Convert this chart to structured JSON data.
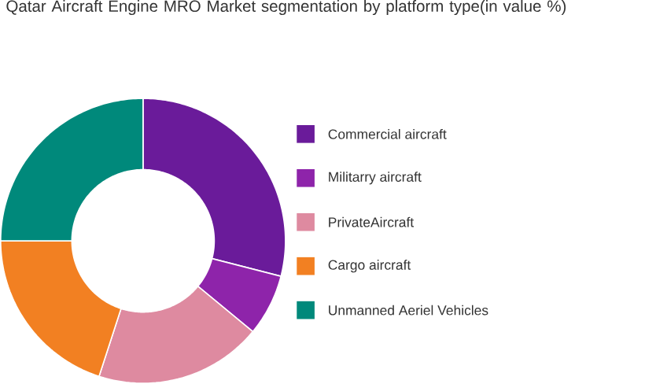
{
  "chart_data": {
    "type": "donut",
    "title": "Qatar Aircraft Engine MRO Market segmentation by platform type(in value %)",
    "categories": [
      "Commercial aircraft",
      "Militarry aircraft",
      "PrivateAircraft",
      "Cargo aircraft",
      "Unmanned Aeriel Vehicles"
    ],
    "values": [
      29,
      7,
      19,
      20,
      25
    ],
    "colors": [
      "#6a1b9a",
      "#8e24aa",
      "#de8aa0",
      "#f28022",
      "#00897b"
    ],
    "legend": "right"
  }
}
